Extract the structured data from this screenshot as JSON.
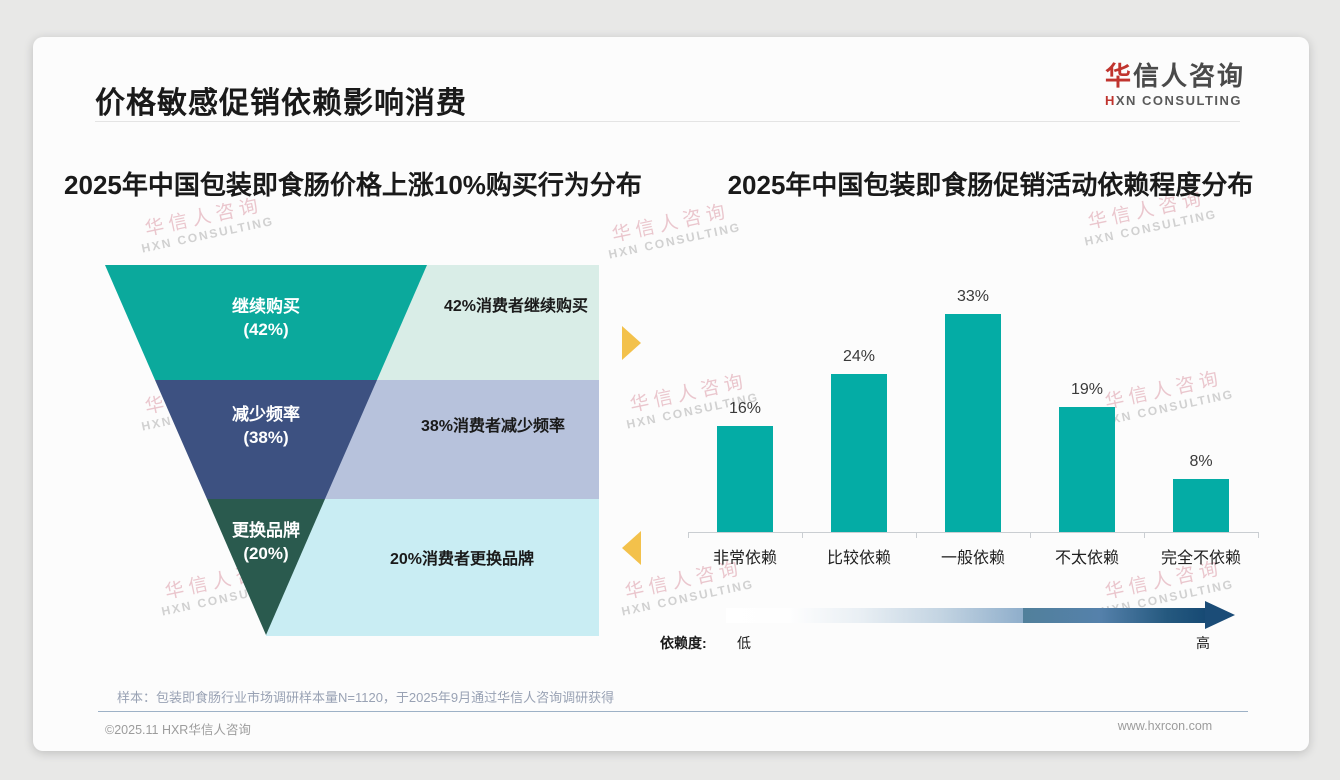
{
  "header": {
    "title": "价格敏感促销依赖影响消费"
  },
  "logo": {
    "cn_red": "华",
    "cn_rest": "信人咨询",
    "en_red": "H",
    "en_rest": "XN CONSULTING"
  },
  "watermark": {
    "cn": "华信人咨询",
    "en": "HXN CONSULTING"
  },
  "chart_data": [
    {
      "type": "funnel",
      "title": "2025年中国包装即食肠价格上涨10%购买行为分布",
      "categories": [
        "继续购买",
        "减少频率",
        "更换品牌"
      ],
      "values": [
        42,
        38,
        20
      ],
      "unit": "%",
      "pct_labels": [
        "(42%)",
        "(38%)",
        "(20%)"
      ],
      "segment_colors": [
        "#0BA99C",
        "#3D5181",
        "#2A5A4E"
      ],
      "band_colors": [
        "#D9EDE7",
        "#B7C2DC",
        "#C9EDF3"
      ],
      "band_labels": [
        "42%消费者继续购买",
        "38%消费者减少频率",
        "20%消费者更换品牌"
      ]
    },
    {
      "type": "bar",
      "title": "2025年中国包装即食肠促销活动依赖程度分布",
      "categories": [
        "非常依赖",
        "比较依赖",
        "一般依赖",
        "不太依赖",
        "完全不依赖"
      ],
      "values": [
        16,
        24,
        33,
        19,
        8
      ],
      "unit": "%",
      "value_labels": [
        "16%",
        "24%",
        "33%",
        "19%",
        "8%"
      ],
      "bar_color": "#04ACA5",
      "ylim": [
        0,
        36
      ],
      "grid": false,
      "legend": {
        "label": "依赖度:",
        "low": "低",
        "high": "高"
      }
    }
  ],
  "footer": {
    "sample_note": "样本：包装即食肠行业市场调研样本量N=1120，于2025年9月通过华信人咨询调研获得",
    "copyright": "©2025.11 HXR华信人咨询",
    "website": "www.hxrcon.com"
  }
}
